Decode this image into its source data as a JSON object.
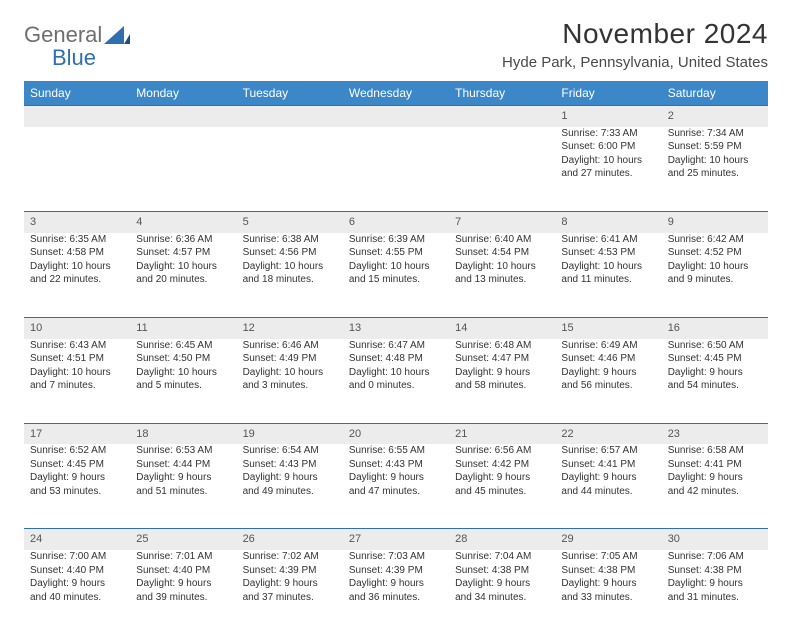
{
  "brand": {
    "word1": "General",
    "word2": "Blue"
  },
  "title": "November 2024",
  "location": "Hyde Park, Pennsylvania, United States",
  "colors": {
    "header_bg": "#3c87c7",
    "rule": "#2f6fb0",
    "daynum_bg": "#ececec"
  },
  "weekdays": [
    "Sunday",
    "Monday",
    "Tuesday",
    "Wednesday",
    "Thursday",
    "Friday",
    "Saturday"
  ],
  "weeks": [
    [
      {
        "n": "",
        "lines": [
          "",
          "",
          "",
          ""
        ]
      },
      {
        "n": "",
        "lines": [
          "",
          "",
          "",
          ""
        ]
      },
      {
        "n": "",
        "lines": [
          "",
          "",
          "",
          ""
        ]
      },
      {
        "n": "",
        "lines": [
          "",
          "",
          "",
          ""
        ]
      },
      {
        "n": "",
        "lines": [
          "",
          "",
          "",
          ""
        ]
      },
      {
        "n": "1",
        "lines": [
          "Sunrise: 7:33 AM",
          "Sunset: 6:00 PM",
          "Daylight: 10 hours",
          "and 27 minutes."
        ]
      },
      {
        "n": "2",
        "lines": [
          "Sunrise: 7:34 AM",
          "Sunset: 5:59 PM",
          "Daylight: 10 hours",
          "and 25 minutes."
        ]
      }
    ],
    [
      {
        "n": "3",
        "lines": [
          "Sunrise: 6:35 AM",
          "Sunset: 4:58 PM",
          "Daylight: 10 hours",
          "and 22 minutes."
        ]
      },
      {
        "n": "4",
        "lines": [
          "Sunrise: 6:36 AM",
          "Sunset: 4:57 PM",
          "Daylight: 10 hours",
          "and 20 minutes."
        ]
      },
      {
        "n": "5",
        "lines": [
          "Sunrise: 6:38 AM",
          "Sunset: 4:56 PM",
          "Daylight: 10 hours",
          "and 18 minutes."
        ]
      },
      {
        "n": "6",
        "lines": [
          "Sunrise: 6:39 AM",
          "Sunset: 4:55 PM",
          "Daylight: 10 hours",
          "and 15 minutes."
        ]
      },
      {
        "n": "7",
        "lines": [
          "Sunrise: 6:40 AM",
          "Sunset: 4:54 PM",
          "Daylight: 10 hours",
          "and 13 minutes."
        ]
      },
      {
        "n": "8",
        "lines": [
          "Sunrise: 6:41 AM",
          "Sunset: 4:53 PM",
          "Daylight: 10 hours",
          "and 11 minutes."
        ]
      },
      {
        "n": "9",
        "lines": [
          "Sunrise: 6:42 AM",
          "Sunset: 4:52 PM",
          "Daylight: 10 hours",
          "and 9 minutes."
        ]
      }
    ],
    [
      {
        "n": "10",
        "lines": [
          "Sunrise: 6:43 AM",
          "Sunset: 4:51 PM",
          "Daylight: 10 hours",
          "and 7 minutes."
        ]
      },
      {
        "n": "11",
        "lines": [
          "Sunrise: 6:45 AM",
          "Sunset: 4:50 PM",
          "Daylight: 10 hours",
          "and 5 minutes."
        ]
      },
      {
        "n": "12",
        "lines": [
          "Sunrise: 6:46 AM",
          "Sunset: 4:49 PM",
          "Daylight: 10 hours",
          "and 3 minutes."
        ]
      },
      {
        "n": "13",
        "lines": [
          "Sunrise: 6:47 AM",
          "Sunset: 4:48 PM",
          "Daylight: 10 hours",
          "and 0 minutes."
        ]
      },
      {
        "n": "14",
        "lines": [
          "Sunrise: 6:48 AM",
          "Sunset: 4:47 PM",
          "Daylight: 9 hours",
          "and 58 minutes."
        ]
      },
      {
        "n": "15",
        "lines": [
          "Sunrise: 6:49 AM",
          "Sunset: 4:46 PM",
          "Daylight: 9 hours",
          "and 56 minutes."
        ]
      },
      {
        "n": "16",
        "lines": [
          "Sunrise: 6:50 AM",
          "Sunset: 4:45 PM",
          "Daylight: 9 hours",
          "and 54 minutes."
        ]
      }
    ],
    [
      {
        "n": "17",
        "lines": [
          "Sunrise: 6:52 AM",
          "Sunset: 4:45 PM",
          "Daylight: 9 hours",
          "and 53 minutes."
        ]
      },
      {
        "n": "18",
        "lines": [
          "Sunrise: 6:53 AM",
          "Sunset: 4:44 PM",
          "Daylight: 9 hours",
          "and 51 minutes."
        ]
      },
      {
        "n": "19",
        "lines": [
          "Sunrise: 6:54 AM",
          "Sunset: 4:43 PM",
          "Daylight: 9 hours",
          "and 49 minutes."
        ]
      },
      {
        "n": "20",
        "lines": [
          "Sunrise: 6:55 AM",
          "Sunset: 4:43 PM",
          "Daylight: 9 hours",
          "and 47 minutes."
        ]
      },
      {
        "n": "21",
        "lines": [
          "Sunrise: 6:56 AM",
          "Sunset: 4:42 PM",
          "Daylight: 9 hours",
          "and 45 minutes."
        ]
      },
      {
        "n": "22",
        "lines": [
          "Sunrise: 6:57 AM",
          "Sunset: 4:41 PM",
          "Daylight: 9 hours",
          "and 44 minutes."
        ]
      },
      {
        "n": "23",
        "lines": [
          "Sunrise: 6:58 AM",
          "Sunset: 4:41 PM",
          "Daylight: 9 hours",
          "and 42 minutes."
        ]
      }
    ],
    [
      {
        "n": "24",
        "lines": [
          "Sunrise: 7:00 AM",
          "Sunset: 4:40 PM",
          "Daylight: 9 hours",
          "and 40 minutes."
        ]
      },
      {
        "n": "25",
        "lines": [
          "Sunrise: 7:01 AM",
          "Sunset: 4:40 PM",
          "Daylight: 9 hours",
          "and 39 minutes."
        ]
      },
      {
        "n": "26",
        "lines": [
          "Sunrise: 7:02 AM",
          "Sunset: 4:39 PM",
          "Daylight: 9 hours",
          "and 37 minutes."
        ]
      },
      {
        "n": "27",
        "lines": [
          "Sunrise: 7:03 AM",
          "Sunset: 4:39 PM",
          "Daylight: 9 hours",
          "and 36 minutes."
        ]
      },
      {
        "n": "28",
        "lines": [
          "Sunrise: 7:04 AM",
          "Sunset: 4:38 PM",
          "Daylight: 9 hours",
          "and 34 minutes."
        ]
      },
      {
        "n": "29",
        "lines": [
          "Sunrise: 7:05 AM",
          "Sunset: 4:38 PM",
          "Daylight: 9 hours",
          "and 33 minutes."
        ]
      },
      {
        "n": "30",
        "lines": [
          "Sunrise: 7:06 AM",
          "Sunset: 4:38 PM",
          "Daylight: 9 hours",
          "and 31 minutes."
        ]
      }
    ]
  ]
}
